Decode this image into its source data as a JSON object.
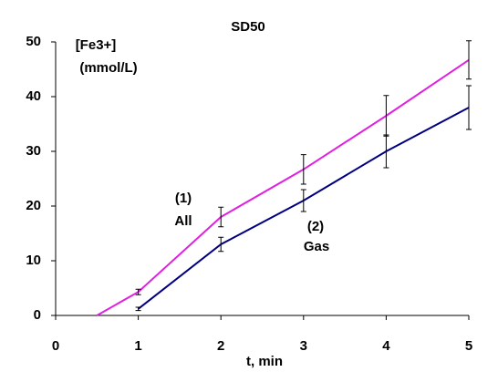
{
  "chart_data": {
    "type": "line",
    "title": "SD50",
    "y_label": [
      "[Fe3+]",
      "(mmol/L)"
    ],
    "x_label": "t, min",
    "annotations": [
      "(1)",
      "All",
      "(2)",
      "Gas"
    ],
    "xlim": [
      0,
      5
    ],
    "xticks": [
      0,
      1,
      2,
      3,
      4,
      5
    ],
    "ylim": [
      0,
      50
    ],
    "yticks": [
      0,
      10,
      20,
      30,
      40,
      50
    ],
    "grid": false,
    "series": [
      {
        "name": "All",
        "color": "#e020e0",
        "x": [
          0.5,
          1,
          2,
          3,
          4,
          5
        ],
        "values": [
          0,
          4.3,
          18,
          26.7,
          36.5,
          46.7
        ],
        "errors": [
          null,
          0.5,
          1.8,
          2.7,
          3.7,
          3.5
        ]
      },
      {
        "name": "Gas",
        "color": "#000080",
        "x": [
          1,
          2,
          3,
          4,
          5
        ],
        "values": [
          1.2,
          13,
          21,
          30,
          38
        ],
        "errors": [
          0.3,
          1.3,
          2,
          3,
          4
        ]
      }
    ]
  }
}
